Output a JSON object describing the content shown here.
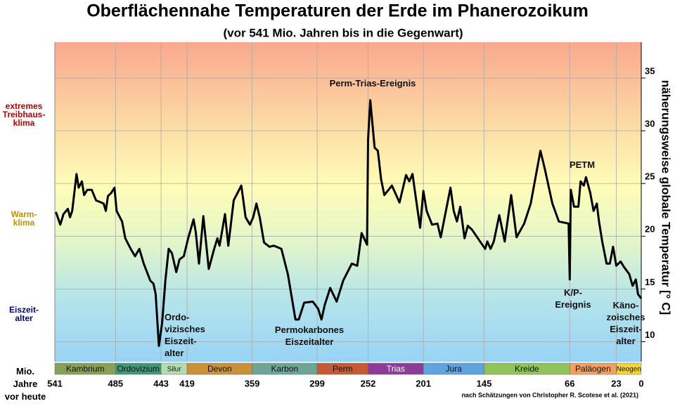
{
  "chart_data": {
    "type": "line",
    "title": "Oberflächennahe Temperaturen der Erde im Phanerozoikum",
    "subtitle": "(vor 541 Mio. Jahren bis in die Gegenwart)",
    "y_label": "näherungsweise  globale  Temperatur [° C]",
    "x_label": [
      "Mio.",
      "Jahre",
      "vor heute"
    ],
    "source": "nach Schätzungen von Christopher R. Scotese et al. (2021)",
    "color": "#000000",
    "grid": true,
    "xlim": [
      541,
      0
    ],
    "ylim": [
      8.1,
      38.4
    ],
    "xticks": [
      541,
      485,
      443,
      419,
      359,
      299,
      252,
      201,
      145,
      66,
      23,
      0
    ],
    "yticks": [
      10,
      15,
      20,
      25,
      30,
      35
    ],
    "climate_zones": [
      {
        "lines": [
          "extremes",
          "Treibhaus-",
          "klima"
        ],
        "color": "#b00000"
      },
      {
        "lines": [
          "Warm-",
          "klima"
        ],
        "color": "#c09000"
      },
      {
        "lines": [
          "Eiszeit-",
          "alter"
        ],
        "color": "#000080"
      }
    ],
    "annotations": [
      {
        "lines": [
          "Perm-Trias-Ereignis"
        ]
      },
      {
        "lines": [
          "PETM"
        ]
      },
      {
        "lines": [
          "K/P-",
          "Ereignis"
        ]
      },
      {
        "lines": [
          "Ordo-",
          "vizisches",
          "Eiszeit-",
          "alter"
        ]
      },
      {
        "lines": [
          "Permokarbones",
          "Eiszeitalter"
        ]
      },
      {
        "lines": [
          "Käno-",
          "zoisches",
          "Eiszeit-",
          "alter"
        ]
      }
    ],
    "periods": [
      {
        "name": "Kambrium",
        "start": 541,
        "end": 485,
        "color": "#8aa05a"
      },
      {
        "name": "Ordovizium",
        "start": 485,
        "end": 443,
        "color": "#3e9a78"
      },
      {
        "name": "Silur",
        "start": 443,
        "end": 419,
        "color": "#b5dcb0"
      },
      {
        "name": "Devon",
        "start": 419,
        "end": 359,
        "color": "#c99138"
      },
      {
        "name": "Karbon",
        "start": 359,
        "end": 299,
        "color": "#6ea597"
      },
      {
        "name": "Perm",
        "start": 299,
        "end": 252,
        "color": "#c65a34"
      },
      {
        "name": "Trias",
        "start": 252,
        "end": 201,
        "color": "#8a3c96"
      },
      {
        "name": "Jura",
        "start": 201,
        "end": 145,
        "color": "#5fa3e0"
      },
      {
        "name": "Kreide",
        "start": 145,
        "end": 66,
        "color": "#8fc45a"
      },
      {
        "name": "Paläogen",
        "start": 66,
        "end": 23,
        "color": "#f0a060"
      },
      {
        "name": "Neogen",
        "start": 23,
        "end": 0,
        "color": "#f5d43a"
      }
    ],
    "x": [
      540,
      536,
      533,
      529,
      527,
      525,
      523,
      521,
      519,
      516,
      514,
      511,
      507,
      503,
      496,
      494,
      492,
      489,
      486,
      484,
      479,
      476,
      471,
      467,
      463,
      459,
      453,
      450,
      448,
      445,
      442,
      439,
      436,
      433,
      429,
      426,
      422,
      418,
      413,
      411,
      408,
      404,
      399,
      394,
      391,
      389,
      384,
      381,
      376,
      369,
      365,
      361,
      358,
      355,
      352,
      348,
      343,
      339,
      332,
      326,
      319,
      316,
      311,
      303,
      298,
      295,
      292,
      287,
      281,
      275,
      267,
      262,
      258,
      253,
      252,
      250,
      246,
      243,
      240,
      237,
      230,
      223,
      217,
      214,
      211,
      209,
      204,
      201,
      198,
      193,
      188,
      185,
      176,
      173,
      170,
      167,
      163,
      160,
      156,
      144,
      142,
      139,
      136,
      131,
      126,
      120,
      115,
      108,
      102,
      93,
      89,
      82,
      76,
      67,
      66,
      65,
      62,
      58,
      56,
      53,
      51,
      47,
      44,
      41,
      39,
      36,
      32,
      29,
      26,
      23,
      19,
      16,
      11,
      8,
      5,
      3,
      0
    ],
    "values": [
      22.3,
      21.1,
      22.1,
      22.6,
      21.8,
      22.4,
      24.1,
      25.9,
      24.6,
      25.2,
      23.9,
      24.4,
      24.4,
      23.4,
      23.1,
      22.4,
      23.8,
      24.1,
      24.6,
      22.4,
      21.4,
      19.8,
      18.8,
      18.1,
      18.8,
      17.4,
      15.8,
      15.5,
      14.5,
      9.6,
      11.8,
      15.8,
      18.8,
      18.4,
      16.6,
      17.8,
      18.1,
      19.8,
      21.6,
      20.4,
      17.4,
      21.9,
      16.9,
      18.8,
      19.8,
      19.1,
      22.1,
      19.1,
      23.4,
      24.8,
      21.8,
      21.1,
      21.8,
      23.1,
      21.8,
      19.4,
      19.0,
      19.1,
      18.8,
      16.4,
      12.1,
      12.1,
      13.7,
      13.8,
      13.1,
      12.1,
      13.5,
      15.1,
      13.8,
      15.8,
      17.4,
      17.2,
      20.3,
      19.2,
      29.2,
      32.9,
      28.4,
      28.1,
      25.4,
      23.9,
      24.8,
      23.2,
      25.8,
      25.2,
      25.9,
      24.4,
      20.8,
      24.3,
      22.4,
      21.1,
      21.2,
      19.9,
      24.6,
      22.4,
      21.4,
      22.8,
      19.8,
      21.0,
      20.6,
      18.8,
      19.5,
      18.8,
      19.5,
      22.0,
      19.5,
      23.9,
      19.9,
      21.2,
      23.1,
      28.1,
      26.4,
      23.1,
      21.4,
      21.2,
      15.9,
      24.4,
      22.8,
      22.8,
      25.2,
      24.8,
      25.6,
      24.1,
      22.4,
      23.1,
      21.4,
      19.5,
      17.4,
      17.4,
      19.0,
      17.2,
      17.6,
      17.1,
      16.4,
      15.3,
      15.9,
      14.5,
      14.1
    ]
  }
}
